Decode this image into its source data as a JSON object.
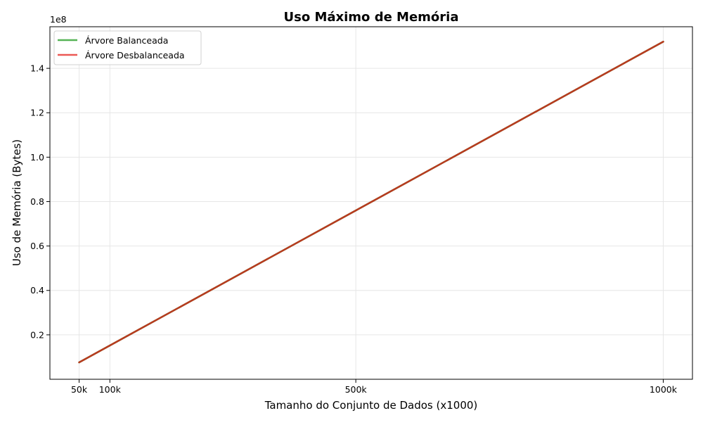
{
  "chart_data": {
    "type": "line",
    "title": "Uso Máximo de Memória",
    "xlabel": "Tamanho do Conjunto de Dados (x1000)",
    "ylabel": "Uso de Memória (Bytes)",
    "y_offset_label": "1e8",
    "x": [
      50,
      100,
      500,
      1000
    ],
    "x_tick_values": [
      50,
      100,
      500,
      1000
    ],
    "x_tick_labels": [
      "50k",
      "100k",
      "500k",
      "1000k"
    ],
    "y_tick_values": [
      0.2,
      0.4,
      0.6,
      0.8,
      1.0,
      1.2,
      1.4
    ],
    "y_tick_labels": [
      "0.2",
      "0.4",
      "0.6",
      "0.8",
      "1.0",
      "1.2",
      "1.4"
    ],
    "xlim": [
      2.5,
      1047.5
    ],
    "ylim": [
      0.0,
      1.5873
    ],
    "grid": true,
    "legend": "top-left",
    "series": [
      {
        "name": "Árvore Balanceada",
        "color": "#2ca02c",
        "values": [
          0.076,
          0.152,
          0.76,
          1.52
        ]
      },
      {
        "name": "Árvore Desbalanceada",
        "color": "#e6302b",
        "values": [
          0.076,
          0.152,
          0.76,
          1.52
        ]
      }
    ],
    "overlap_color": "#b83a1f"
  }
}
